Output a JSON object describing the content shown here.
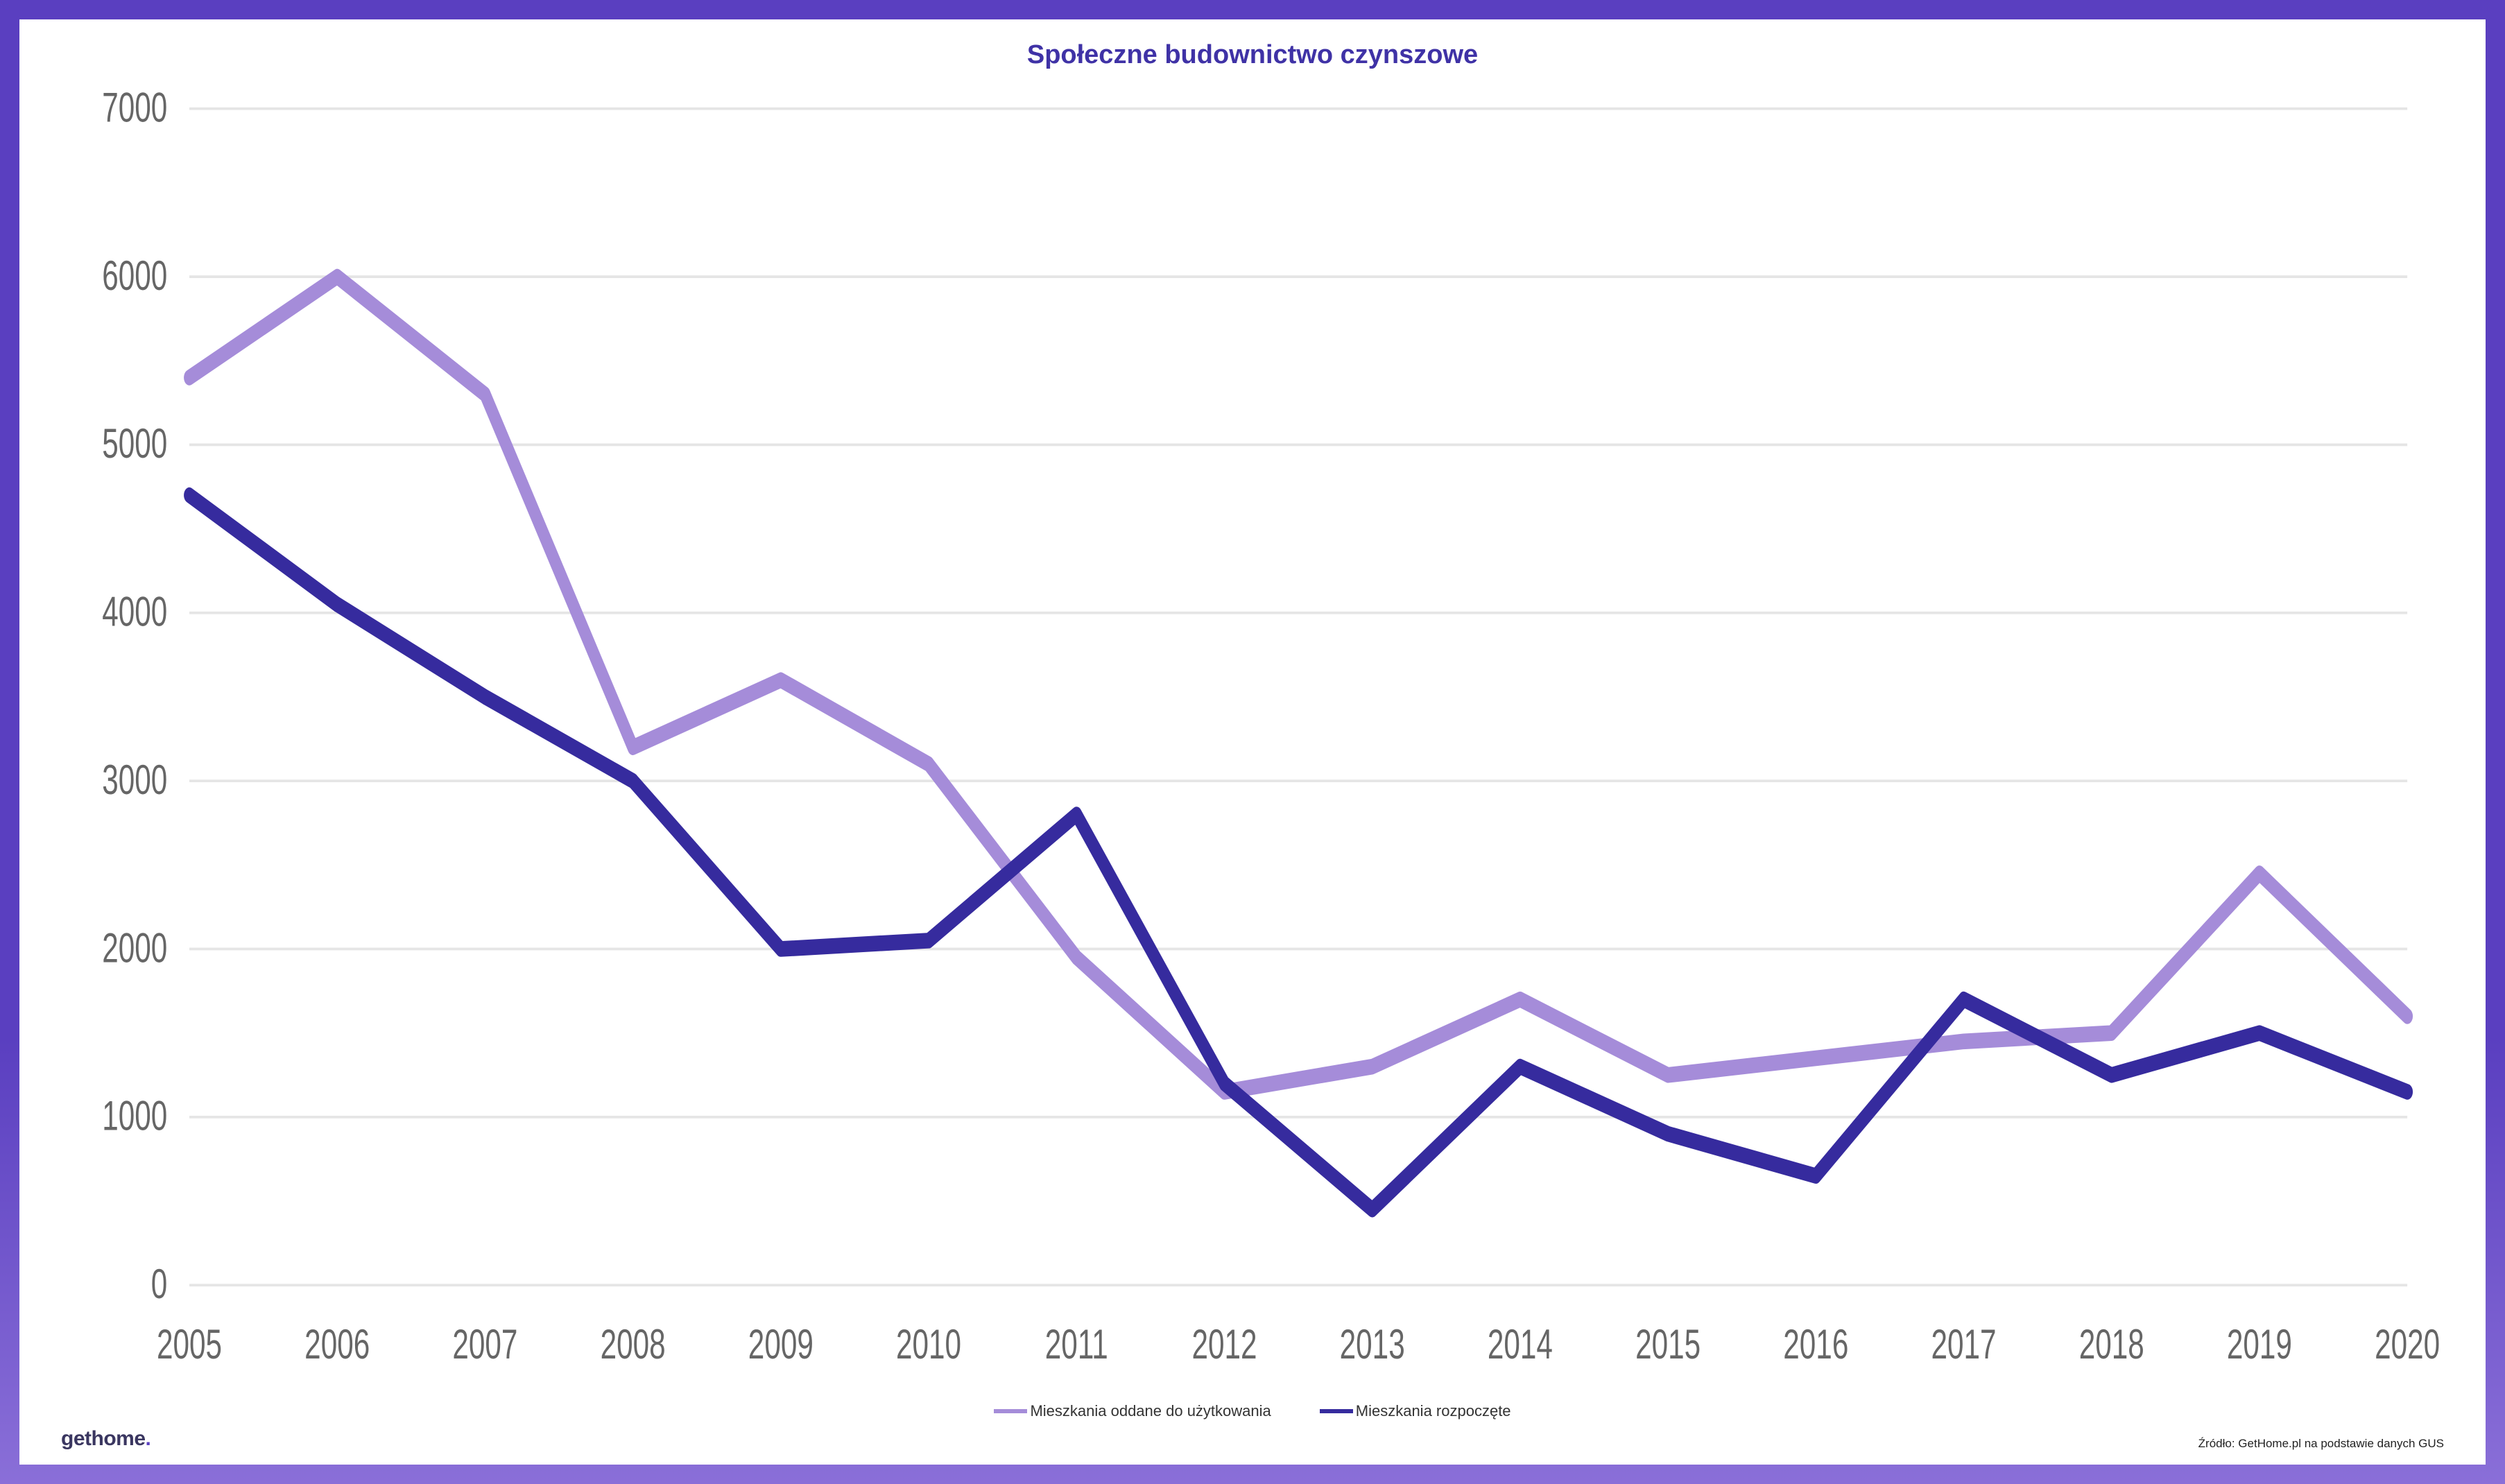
{
  "title": "Społeczne budownictwo czynszowe",
  "chart": {
    "type": "line",
    "background_color": "#ffffff",
    "frame_gradient_top": "#5a3fc0",
    "frame_gradient_bottom": "#8a6fd8",
    "title_color": "#3f32a6",
    "title_fontsize": 38,
    "title_fontweight": 800,
    "label_fontsize": 16,
    "legend_fontsize": 22,
    "grid_color": "#e5e5e5",
    "axis_label_color": "#666666",
    "line_width": 6,
    "x": {
      "categories": [
        "2005",
        "2006",
        "2007",
        "2008",
        "2009",
        "2010",
        "2011",
        "2012",
        "2013",
        "2014",
        "2015",
        "2016",
        "2017",
        "2018",
        "2019",
        "2020"
      ]
    },
    "y": {
      "min": 0,
      "max": 7000,
      "tick_step": 1000,
      "ticks": [
        0,
        1000,
        2000,
        3000,
        4000,
        5000,
        6000,
        7000
      ]
    },
    "series": [
      {
        "key": "oddane",
        "label": "Mieszkania oddane do użytkowania",
        "color": "#a58cd9",
        "values": [
          5400,
          6000,
          5300,
          3200,
          3600,
          3100,
          1950,
          1150,
          1300,
          1700,
          1250,
          1350,
          1450,
          1500,
          2450,
          1600
        ]
      },
      {
        "key": "rozpoczete",
        "label": "Mieszkania rozpoczęte",
        "color": "#362b9e",
        "values": [
          4700,
          4050,
          3500,
          3000,
          2000,
          2050,
          2800,
          1200,
          450,
          1300,
          900,
          650,
          1700,
          1250,
          1500,
          1150
        ]
      }
    ]
  },
  "logo": {
    "text_main": "gethome",
    "text_dot": ".",
    "color_main": "#3a3660",
    "color_dot": "#5a3fc0"
  },
  "source": "Źródło: GetHome.pl na podstawie danych GUS"
}
